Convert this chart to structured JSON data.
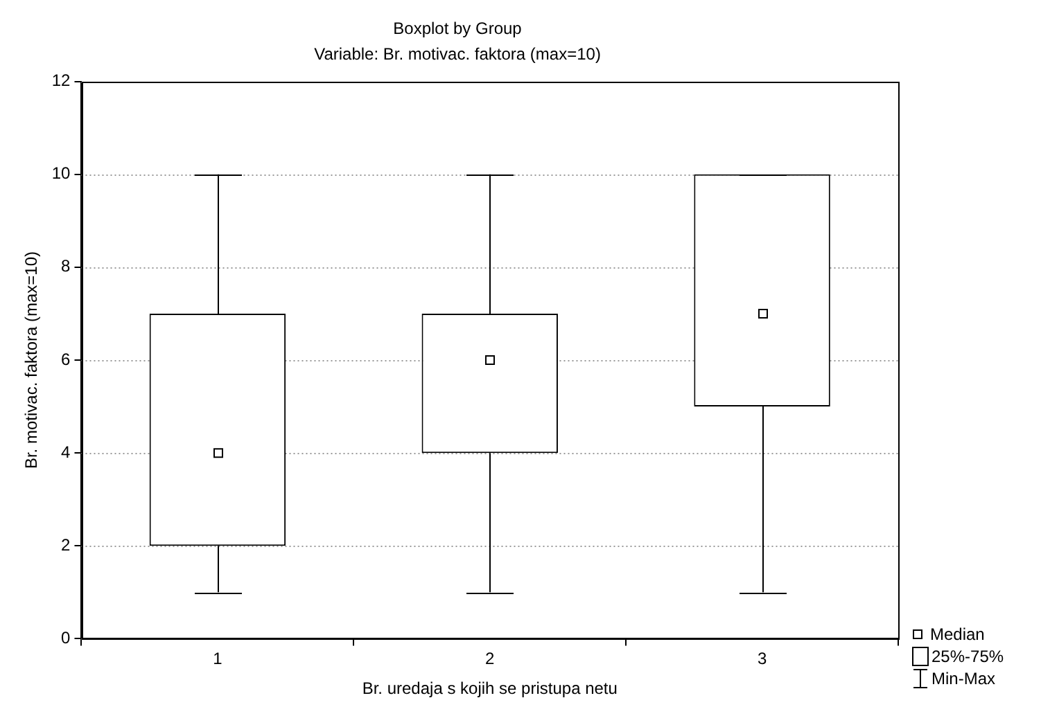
{
  "chart_data": {
    "type": "box",
    "title": "Boxplot by Group",
    "subtitle": "Variable: Br. motivac. faktora (max=10)",
    "xlabel": "Br. uredaja s kojih se pristupa netu",
    "ylabel": "Br. motivac. faktora (max=10)",
    "categories": [
      "1",
      "2",
      "3"
    ],
    "boxes": [
      {
        "low": 1,
        "q1": 2,
        "median": 4,
        "q3": 7,
        "high": 10
      },
      {
        "low": 1,
        "q1": 4,
        "median": 6,
        "q3": 7,
        "high": 10
      },
      {
        "low": 1,
        "q1": 5,
        "median": 7,
        "q3": 10,
        "high": 10
      }
    ],
    "ylim": [
      0,
      12
    ],
    "yticks": [
      0,
      2,
      4,
      6,
      8,
      10,
      12
    ],
    "grid": "y",
    "marker": "square",
    "annotations": [
      "Median",
      "25%-75%",
      "Min-Max"
    ]
  }
}
